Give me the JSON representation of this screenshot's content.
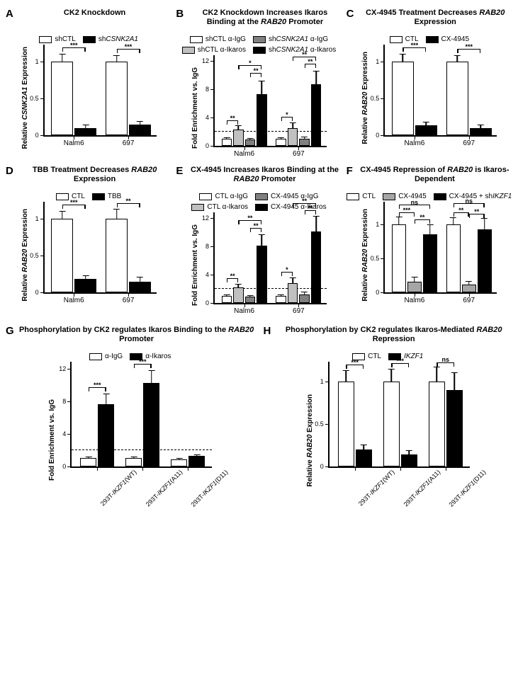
{
  "panels": {
    "A": {
      "letter": "A",
      "title": "CK2 Knockdown",
      "ylabel": "Relative CSNK2A1 Expression",
      "legend": [
        {
          "label": "shCTL",
          "color": "#ffffff"
        },
        {
          "label": "sh",
          "ital": "CSNK2A1",
          "color": "#000000"
        }
      ],
      "ylim": 1.25,
      "yticks": [
        0.0,
        0.5,
        1.0
      ],
      "groups": [
        "Nalm6",
        "697"
      ],
      "bars": [
        {
          "g": 0,
          "i": 0,
          "val": 1.0,
          "err": 0.12,
          "color": "#ffffff"
        },
        {
          "g": 0,
          "i": 1,
          "val": 0.1,
          "err": 0.05,
          "color": "#000000"
        },
        {
          "g": 1,
          "i": 0,
          "val": 1.0,
          "err": 0.1,
          "color": "#ffffff"
        },
        {
          "g": 1,
          "i": 1,
          "val": 0.14,
          "err": 0.06,
          "color": "#000000"
        }
      ],
      "sig": [
        {
          "g": 0,
          "from": 0,
          "to": 1,
          "label": "***",
          "y": 1.18
        },
        {
          "g": 1,
          "from": 0,
          "to": 1,
          "label": "***",
          "y": 1.16
        }
      ],
      "nPerGroup": 2
    },
    "B": {
      "letter": "B",
      "title": "CK2 Knockdown Increases Ikaros Binding at the <span class='ital'>RAB20</span> Promoter",
      "ylabel": "Fold Enrichment vs. IgG",
      "legend": [
        {
          "label": "shCTL α-IgG",
          "color": "#ffffff"
        },
        {
          "label": "sh",
          "ital": "CSNK2A1",
          "post": " α-IgG",
          "color": "#808080"
        },
        {
          "label": "shCTL α-Ikaros",
          "color": "#c0c0c0"
        },
        {
          "label": "sh",
          "ital": "CSNK2A1",
          "post": " α-Ikaros",
          "color": "#000000"
        }
      ],
      "ylim": 13,
      "yticks": [
        0,
        4,
        8,
        12
      ],
      "dashed": 2,
      "groups": [
        "Nalm6",
        "697"
      ],
      "bars": [
        {
          "g": 0,
          "i": 0,
          "val": 1.0,
          "err": 0.3,
          "color": "#ffffff"
        },
        {
          "g": 0,
          "i": 1,
          "val": 2.3,
          "err": 0.7,
          "color": "#c0c0c0"
        },
        {
          "g": 0,
          "i": 2,
          "val": 0.9,
          "err": 0.3,
          "color": "#808080"
        },
        {
          "g": 0,
          "i": 3,
          "val": 7.3,
          "err": 2.0,
          "color": "#000000"
        },
        {
          "g": 1,
          "i": 0,
          "val": 1.0,
          "err": 0.3,
          "color": "#ffffff"
        },
        {
          "g": 1,
          "i": 1,
          "val": 2.5,
          "err": 0.9,
          "color": "#c0c0c0"
        },
        {
          "g": 1,
          "i": 2,
          "val": 1.0,
          "err": 0.4,
          "color": "#808080"
        },
        {
          "g": 1,
          "i": 3,
          "val": 8.7,
          "err": 2.0,
          "color": "#000000"
        }
      ],
      "sig": [
        {
          "g": 0,
          "from": 0,
          "to": 1,
          "label": "**",
          "y": 3.5
        },
        {
          "g": 0,
          "from": 2,
          "to": 3,
          "label": "**",
          "y": 10.2
        },
        {
          "g": 0,
          "from": 1,
          "to": 3,
          "label": "*",
          "y": 11.3
        },
        {
          "g": 1,
          "from": 0,
          "to": 1,
          "label": "*",
          "y": 4.0
        },
        {
          "g": 1,
          "from": 2,
          "to": 3,
          "label": "**",
          "y": 11.5
        },
        {
          "g": 1,
          "from": 1,
          "to": 3,
          "label": "**",
          "y": 12.5
        }
      ],
      "nPerGroup": 4
    },
    "C": {
      "letter": "C",
      "title": "CX-4945 Treatment Decreases <span class='ital'>RAB20</span> Expression",
      "ylabel": "Relative RAB20 Expression",
      "legend": [
        {
          "label": "CTL",
          "color": "#ffffff"
        },
        {
          "label": "CX-4945",
          "color": "#000000"
        }
      ],
      "ylim": 1.25,
      "yticks": [
        0.0,
        0.5,
        1.0
      ],
      "groups": [
        "Nalm6",
        "697"
      ],
      "bars": [
        {
          "g": 0,
          "i": 0,
          "val": 1.0,
          "err": 0.12,
          "color": "#ffffff"
        },
        {
          "g": 0,
          "i": 1,
          "val": 0.13,
          "err": 0.06,
          "color": "#000000"
        },
        {
          "g": 1,
          "i": 0,
          "val": 1.0,
          "err": 0.1,
          "color": "#ffffff"
        },
        {
          "g": 1,
          "i": 1,
          "val": 0.1,
          "err": 0.05,
          "color": "#000000"
        }
      ],
      "sig": [
        {
          "g": 0,
          "from": 0,
          "to": 1,
          "label": "***",
          "y": 1.18
        },
        {
          "g": 1,
          "from": 0,
          "to": 1,
          "label": "***",
          "y": 1.16
        }
      ],
      "nPerGroup": 2
    },
    "D": {
      "letter": "D",
      "title": "TBB Treatment Decreases <span class='ital'>RAB20</span> Expression",
      "ylabel": "Relative RAB20 Expression",
      "legend": [
        {
          "label": "CTL",
          "color": "#ffffff"
        },
        {
          "label": "TBB",
          "color": "#000000"
        }
      ],
      "ylim": 1.25,
      "yticks": [
        0.0,
        0.5,
        1.0
      ],
      "groups": [
        "Nalm6",
        "697"
      ],
      "bars": [
        {
          "g": 0,
          "i": 0,
          "val": 1.0,
          "err": 0.12,
          "color": "#ffffff"
        },
        {
          "g": 0,
          "i": 1,
          "val": 0.18,
          "err": 0.06,
          "color": "#000000"
        },
        {
          "g": 1,
          "i": 0,
          "val": 1.0,
          "err": 0.14,
          "color": "#ffffff"
        },
        {
          "g": 1,
          "i": 1,
          "val": 0.14,
          "err": 0.08,
          "color": "#000000"
        }
      ],
      "sig": [
        {
          "g": 0,
          "from": 0,
          "to": 1,
          "label": "***",
          "y": 1.18
        },
        {
          "g": 1,
          "from": 0,
          "to": 1,
          "label": "**",
          "y": 1.2
        }
      ],
      "nPerGroup": 2
    },
    "E": {
      "letter": "E",
      "title": "CX-4945 Increases Ikaros Binding at the <span class='ital'>RAB20</span> Promoter",
      "ylabel": "Fold Enrichment vs. IgG",
      "legend": [
        {
          "label": "CTL α-IgG",
          "color": "#ffffff"
        },
        {
          "label": "CX-4945 α-IgG",
          "color": "#808080"
        },
        {
          "label": "CTL α-Ikaros",
          "color": "#c0c0c0"
        },
        {
          "label": "CX-4945 α-Ikaros",
          "color": "#000000"
        }
      ],
      "ylim": 13,
      "yticks": [
        0,
        4,
        8,
        12
      ],
      "dashed": 2,
      "groups": [
        "Nalm6",
        "697"
      ],
      "bars": [
        {
          "g": 0,
          "i": 0,
          "val": 1.0,
          "err": 0.3,
          "color": "#ffffff"
        },
        {
          "g": 0,
          "i": 1,
          "val": 2.2,
          "err": 0.6,
          "color": "#c0c0c0"
        },
        {
          "g": 0,
          "i": 2,
          "val": 0.9,
          "err": 0.3,
          "color": "#808080"
        },
        {
          "g": 0,
          "i": 3,
          "val": 8.1,
          "err": 1.7,
          "color": "#000000"
        },
        {
          "g": 1,
          "i": 0,
          "val": 1.0,
          "err": 0.3,
          "color": "#ffffff"
        },
        {
          "g": 1,
          "i": 1,
          "val": 2.8,
          "err": 0.9,
          "color": "#c0c0c0"
        },
        {
          "g": 1,
          "i": 2,
          "val": 1.2,
          "err": 0.5,
          "color": "#808080"
        },
        {
          "g": 1,
          "i": 3,
          "val": 10.1,
          "err": 2.3,
          "color": "#000000"
        }
      ],
      "sig": [
        {
          "g": 0,
          "from": 0,
          "to": 1,
          "label": "**",
          "y": 3.4
        },
        {
          "g": 0,
          "from": 2,
          "to": 3,
          "label": "**",
          "y": 10.5
        },
        {
          "g": 0,
          "from": 1,
          "to": 3,
          "label": "**",
          "y": 11.6
        },
        {
          "g": 1,
          "from": 0,
          "to": 1,
          "label": "*",
          "y": 4.3
        },
        {
          "g": 1,
          "from": 2,
          "to": 3,
          "label": "**",
          "y": 13.0
        },
        {
          "g": 1,
          "from": 1,
          "to": 3,
          "label": "**",
          "y": 14.0
        }
      ],
      "nPerGroup": 4
    },
    "F": {
      "letter": "F",
      "title": "CX-4945 Repression of <span class='ital'>RAB20</span> is Ikaros-Dependent",
      "ylabel": "Relative RAB20 Expression",
      "legend": [
        {
          "label": "CTL",
          "color": "#ffffff"
        },
        {
          "label": "CX-4945",
          "color": "#a6a6a6"
        },
        {
          "label": "CX-4945 + sh",
          "ital": "IKZF1",
          "color": "#000000"
        }
      ],
      "ylim": 1.35,
      "yticks": [
        0.0,
        0.5,
        1.0
      ],
      "groups": [
        "Nalm6",
        "697"
      ],
      "bars": [
        {
          "g": 0,
          "i": 0,
          "val": 1.0,
          "err": 0.12,
          "color": "#ffffff"
        },
        {
          "g": 0,
          "i": 1,
          "val": 0.16,
          "err": 0.08,
          "color": "#a6a6a6"
        },
        {
          "g": 0,
          "i": 2,
          "val": 0.85,
          "err": 0.16,
          "color": "#000000"
        },
        {
          "g": 1,
          "i": 0,
          "val": 1.0,
          "err": 0.11,
          "color": "#ffffff"
        },
        {
          "g": 1,
          "i": 1,
          "val": 0.11,
          "err": 0.07,
          "color": "#a6a6a6"
        },
        {
          "g": 1,
          "i": 2,
          "val": 0.92,
          "err": 0.18,
          "color": "#000000"
        }
      ],
      "sig": [
        {
          "g": 0,
          "from": 0,
          "to": 1,
          "label": "***",
          "y": 1.16
        },
        {
          "g": 0,
          "from": 1,
          "to": 2,
          "label": "**",
          "y": 1.06
        },
        {
          "g": 0,
          "from": 0,
          "to": 2,
          "label": "ns",
          "y": 1.28
        },
        {
          "g": 1,
          "from": 0,
          "to": 1,
          "label": "**",
          "y": 1.16
        },
        {
          "g": 1,
          "from": 1,
          "to": 2,
          "label": "**",
          "y": 1.14
        },
        {
          "g": 1,
          "from": 0,
          "to": 2,
          "label": "ns",
          "y": 1.3
        }
      ],
      "nPerGroup": 3
    },
    "G": {
      "letter": "G",
      "title": "Phosphorylation by CK2 regulates Ikaros Binding to the <span class='ital'>RAB20</span> Promoter",
      "ylabel": "Fold Enrichment vs. IgG",
      "legend": [
        {
          "label": "α-IgG",
          "color": "#ffffff"
        },
        {
          "label": "α-Ikaros",
          "color": "#000000"
        }
      ],
      "ylim": 13,
      "yticks": [
        0,
        4,
        8,
        12
      ],
      "dashed": 2,
      "groups_rot": [
        "293T-IKZF1(WT)",
        "293T-IKZF1(A11)",
        "293T-IKZF1(D11)"
      ],
      "bars": [
        {
          "g": 0,
          "i": 0,
          "val": 1.0,
          "err": 0.3,
          "color": "#ffffff"
        },
        {
          "g": 0,
          "i": 1,
          "val": 7.6,
          "err": 1.4,
          "color": "#000000"
        },
        {
          "g": 1,
          "i": 0,
          "val": 1.0,
          "err": 0.3,
          "color": "#ffffff"
        },
        {
          "g": 1,
          "i": 1,
          "val": 10.2,
          "err": 1.7,
          "color": "#000000"
        },
        {
          "g": 2,
          "i": 0,
          "val": 0.9,
          "err": 0.2,
          "color": "#ffffff"
        },
        {
          "g": 2,
          "i": 1,
          "val": 1.3,
          "err": 0.3,
          "color": "#000000"
        }
      ],
      "sig": [
        {
          "g": 0,
          "from": 0,
          "to": 1,
          "label": "***",
          "y": 9.6
        },
        {
          "g": 1,
          "from": 0,
          "to": 1,
          "label": "***",
          "y": 12.5
        }
      ],
      "nPerGroup": 2
    },
    "H": {
      "letter": "H",
      "title": "Phosphorylation by CK2 regulates Ikaros-Mediated <span class='ital'>RAB20</span> Repression",
      "ylabel": "Relative RAB20 Expression",
      "legend": [
        {
          "label": "CTL",
          "color": "#ffffff"
        },
        {
          "ital": "IKZF1",
          "color": "#000000"
        }
      ],
      "ylim": 1.25,
      "yticks": [
        0.0,
        0.5,
        1.0
      ],
      "groups_rot": [
        "293T-IKZF1(WT)",
        "293T-IKZF1(A11)",
        "293T-IKZF1(D11)"
      ],
      "bars": [
        {
          "g": 0,
          "i": 0,
          "val": 1.0,
          "err": 0.14,
          "color": "#ffffff"
        },
        {
          "g": 0,
          "i": 1,
          "val": 0.2,
          "err": 0.07,
          "color": "#000000"
        },
        {
          "g": 1,
          "i": 0,
          "val": 1.0,
          "err": 0.16,
          "color": "#ffffff"
        },
        {
          "g": 1,
          "i": 1,
          "val": 0.14,
          "err": 0.06,
          "color": "#000000"
        },
        {
          "g": 2,
          "i": 0,
          "val": 1.0,
          "err": 0.18,
          "color": "#ffffff"
        },
        {
          "g": 2,
          "i": 1,
          "val": 0.9,
          "err": 0.22,
          "color": "#000000"
        }
      ],
      "sig": [
        {
          "g": 0,
          "from": 0,
          "to": 1,
          "label": "***",
          "y": 1.19
        },
        {
          "g": 1,
          "from": 0,
          "to": 1,
          "label": "***",
          "y": 1.21
        },
        {
          "g": 2,
          "from": 0,
          "to": 1,
          "label": "ns",
          "y": 1.22
        }
      ],
      "nPerGroup": 2
    }
  },
  "chart_dims": {
    "small_w": 160,
    "small_h": 130,
    "bottom_h": 150,
    "bottom_w": 200
  }
}
